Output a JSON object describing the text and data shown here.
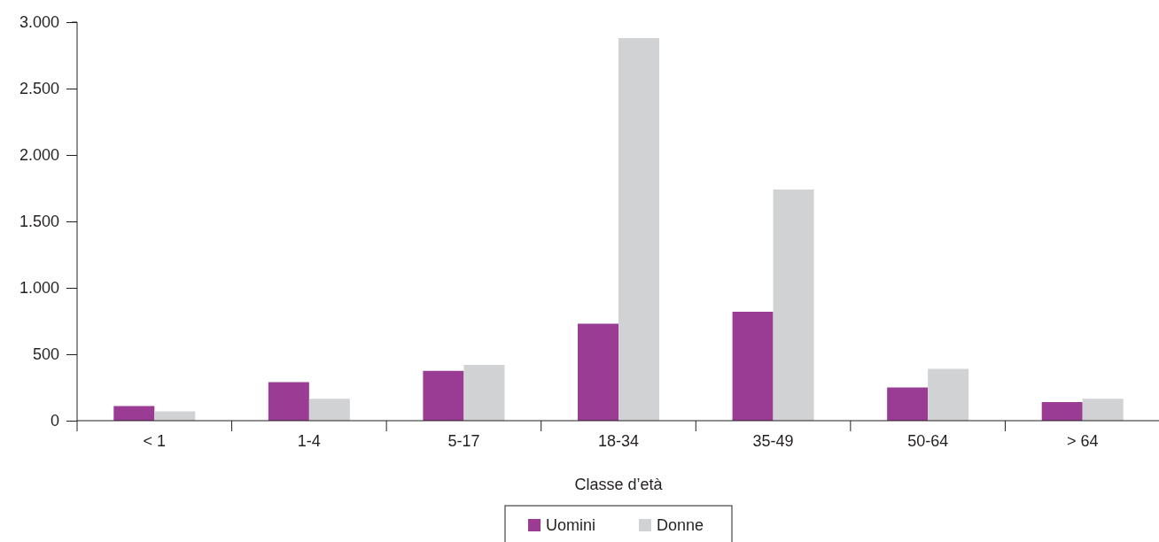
{
  "chart_data": {
    "type": "bar",
    "xlabel": "Classe d’età",
    "categories": [
      "< 1",
      "1-4",
      "5-17",
      "18-34",
      "35-49",
      "50-64",
      "> 64"
    ],
    "series": [
      {
        "name": "Uomini",
        "color": "#9b3c94",
        "values": [
          110,
          290,
          375,
          730,
          820,
          250,
          140
        ]
      },
      {
        "name": "Donne",
        "color": "#d1d2d4",
        "values": [
          70,
          165,
          420,
          2880,
          1740,
          390,
          165
        ]
      }
    ],
    "ylim": [
      0,
      3000
    ],
    "yticks": [
      {
        "value": 0,
        "label": "0"
      },
      {
        "value": 500,
        "label": "500"
      },
      {
        "value": 1000,
        "label": "1.000"
      },
      {
        "value": 1500,
        "label": "1.500"
      },
      {
        "value": 2000,
        "label": "2.000"
      },
      {
        "value": 2500,
        "label": "2.500"
      },
      {
        "value": 3000,
        "label": "3.000"
      }
    ],
    "grid": false,
    "legend": "bottom"
  }
}
